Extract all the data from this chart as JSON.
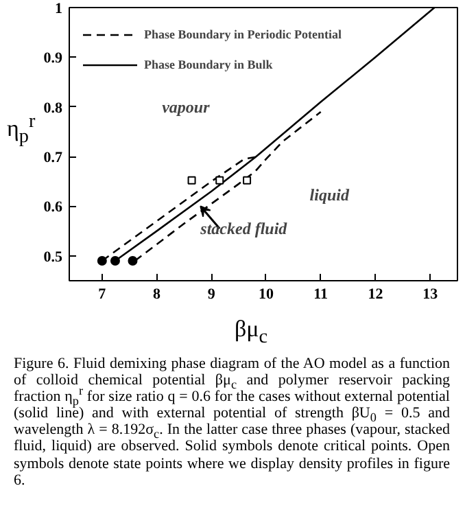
{
  "chart_data": {
    "type": "line",
    "xlabel": "βμ$_{c}$",
    "ylabel": "η$_{p}$$^{r}$",
    "xlim": [
      6.4,
      13.5
    ],
    "ylim": [
      0.45,
      1.0
    ],
    "xticks": [
      7,
      8,
      9,
      10,
      11,
      12,
      13
    ],
    "yticks": [
      0.5,
      0.6,
      0.7,
      0.8,
      0.9,
      {
        "value": 1.0,
        "label": "1"
      }
    ],
    "grid": false,
    "legend": "top left",
    "series": [
      {
        "name": "Phase Boundary in Periodic Potential",
        "color": "#000000",
        "line_style": "dashed",
        "x": [
          7.0,
          8.0,
          9.0,
          9.4,
          9.6,
          9.85,
          null,
          7.6,
          8.5,
          9.5,
          9.8,
          10.0,
          10.3,
          11.0
        ],
        "values": [
          0.49,
          0.57,
          0.65,
          0.68,
          0.695,
          0.7,
          null,
          0.49,
          0.565,
          0.645,
          0.67,
          0.695,
          0.73,
          0.79
        ]
      },
      {
        "name": "Phase Boundary in Bulk",
        "color": "#000000",
        "line_style": "solid",
        "x": [
          7.24,
          8.0,
          9.0,
          9.82,
          11.0,
          12.0,
          13.08
        ],
        "values": [
          0.49,
          0.55,
          0.63,
          0.7,
          0.81,
          0.9,
          1.0
        ]
      },
      {
        "type": "scatter",
        "marker": "circle",
        "color": "#000000",
        "x": [
          7.0,
          7.24,
          7.56
        ],
        "values": [
          0.49,
          0.49,
          0.49
        ]
      },
      {
        "type": "scatter",
        "marker": "square",
        "color": "#000000",
        "x": [
          8.64,
          9.15,
          9.65
        ],
        "values": [
          0.652,
          0.652,
          0.652
        ]
      }
    ],
    "annotations": [
      "vapour",
      "liquid",
      {
        "text": "stacked fluid",
        "x": 8.8,
        "y": 0.6
      },
      "Figure 6.   Fluid demixing phase diagram of the AO model as a function of colloid chemical potential βμ$_{c}$ and polymer reservoir packing fraction η$_{p}$$^{r}$ for size ratio q = 0.6 for the cases without external potential (solid line) and with external potential of strength βU$_{0}$ = 0.5 and wavelength λ = 8.192σ$_{c}$. In the latter case three phases (vapour, stacked fluid, liquid) are observed. Solid symbols denote critical points. Open symbols denote state points where we display density profiles in figure 6."
    ]
  }
}
